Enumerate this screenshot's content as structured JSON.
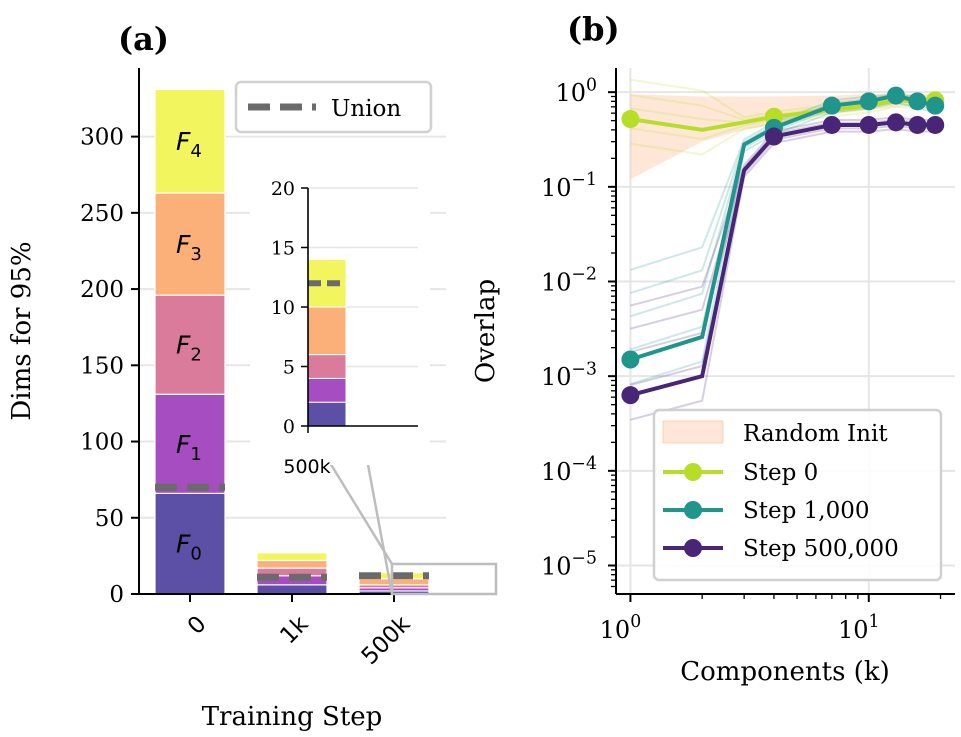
{
  "chart_data": [
    {
      "panel": "(a)",
      "type": "bar",
      "stacked": true,
      "title": "(a)",
      "xlabel": "Training Step",
      "ylabel": "Dims for 95%",
      "categories": [
        "0",
        "1k",
        "500k"
      ],
      "ylim": [
        0,
        345
      ],
      "yticks": [
        0,
        50,
        100,
        150,
        200,
        250,
        300
      ],
      "series": [
        {
          "name": "F_0",
          "color": "#5b4fa6",
          "values": [
            66,
            6,
            2
          ]
        },
        {
          "name": "F_1",
          "color": "#a64dc2",
          "values": [
            65,
            6,
            2
          ]
        },
        {
          "name": "F_2",
          "color": "#db7b9b",
          "values": [
            65,
            5,
            2
          ]
        },
        {
          "name": "F_3",
          "color": "#fbb07a",
          "values": [
            67,
            5,
            4
          ]
        },
        {
          "name": "F_4",
          "color": "#f2f55e",
          "values": [
            68,
            5,
            4
          ]
        }
      ],
      "segment_labels": [
        {
          "main": "F",
          "sub": "0"
        },
        {
          "main": "F",
          "sub": "1"
        },
        {
          "main": "F",
          "sub": "2"
        },
        {
          "main": "F",
          "sub": "3"
        },
        {
          "main": "F",
          "sub": "4"
        }
      ],
      "union": {
        "name": "Union",
        "values": [
          70,
          11,
          12
        ],
        "color": "#6b6b6b"
      },
      "legend": {
        "position": "top-right",
        "entries": [
          "Union"
        ]
      },
      "inset": {
        "category": "500k",
        "ylim": [
          0,
          20
        ],
        "yticks": [
          0,
          5,
          10,
          15,
          20
        ],
        "values": [
          2,
          2,
          2,
          4,
          4
        ],
        "union": 12,
        "xtick": "500k"
      }
    },
    {
      "panel": "(b)",
      "type": "line",
      "title": "(b)",
      "xlabel": "Components (k)",
      "ylabel": "Overlap",
      "xscale": "log",
      "yscale": "log",
      "xlim": [
        0.87,
        23
      ],
      "ylim": [
        5e-06,
        1.8
      ],
      "xticks": [
        {
          "value": 1,
          "base": "10",
          "exp": "0"
        },
        {
          "value": 10,
          "base": "10",
          "exp": "1"
        }
      ],
      "yticks": [
        {
          "value": 1,
          "base": "10",
          "exp": "0"
        },
        {
          "value": 0.1,
          "base": "10",
          "exp": "−1"
        },
        {
          "value": 0.01,
          "base": "10",
          "exp": "−2"
        },
        {
          "value": 0.001,
          "base": "10",
          "exp": "−3"
        },
        {
          "value": 0.0001,
          "base": "10",
          "exp": "−4"
        },
        {
          "value": 1e-05,
          "base": "10",
          "exp": "−5"
        }
      ],
      "x": [
        1,
        2,
        3,
        4,
        7,
        10,
        13,
        16,
        19
      ],
      "random_init": {
        "name": "Random Init",
        "color": "#fbb07a",
        "lower": [
          0.12,
          0.3,
          0.4,
          0.45,
          0.6,
          0.65,
          0.7,
          0.72,
          0.75
        ],
        "upper": [
          0.95,
          0.9,
          0.9,
          0.9,
          0.92,
          0.95,
          0.95,
          0.95,
          0.95
        ]
      },
      "series": [
        {
          "name": "Step 0",
          "color": "#b7dd29",
          "values": [
            0.52,
            0.4,
            0.48,
            0.55,
            0.65,
            0.72,
            0.82,
            0.8,
            0.82
          ],
          "marker_indices": [
            0,
            3,
            8
          ]
        },
        {
          "name": "Step 1,000",
          "color": "#1f958b",
          "values": [
            0.0015,
            0.0026,
            0.28,
            0.42,
            0.72,
            0.8,
            0.92,
            0.8,
            0.72
          ],
          "marker_indices": [
            0,
            3,
            4,
            5,
            6,
            7,
            8
          ]
        },
        {
          "name": "Step 500,000",
          "color": "#482576",
          "values": [
            0.00063,
            0.001,
            0.15,
            0.34,
            0.45,
            0.45,
            0.48,
            0.45,
            0.45
          ],
          "marker_indices": [
            0,
            3,
            4,
            5,
            6,
            7,
            8
          ]
        }
      ],
      "legend": {
        "position": "bottom-right",
        "entries": [
          "Random Init",
          "Step 0",
          "Step 1,000",
          "Step 500,000"
        ]
      }
    }
  ]
}
